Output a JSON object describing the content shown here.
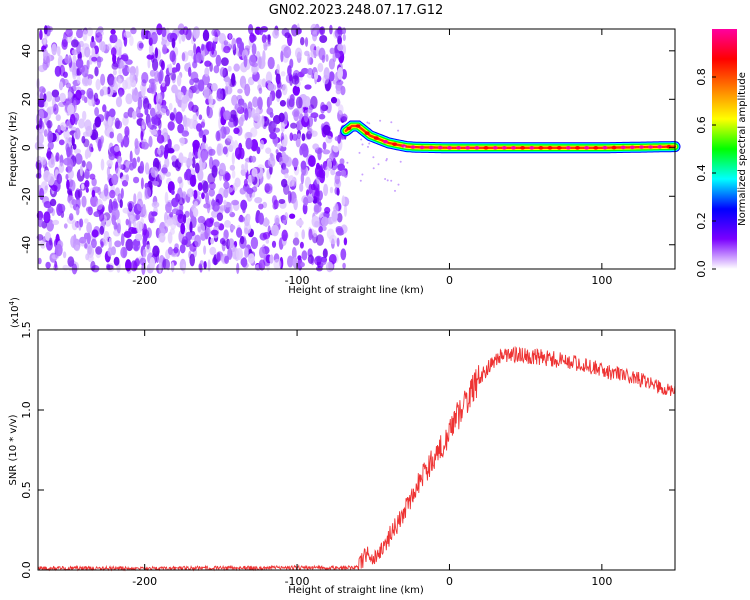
{
  "title": "GN02.2023.248.07.17.G12",
  "chart_data": [
    {
      "type": "heatmap",
      "xlabel": "Height of straight line (km)",
      "ylabel": "Frequency (Hz)",
      "xlim": [
        -270,
        148
      ],
      "ylim": [
        -50,
        49
      ],
      "x_ticks": [
        -200,
        -100,
        0,
        100
      ],
      "y_ticks": [
        -40,
        -20,
        0,
        20,
        40
      ],
      "noise_region_x": [
        -270,
        -68
      ],
      "ridge": {
        "x": [
          -68,
          -64,
          -60,
          -56,
          -52,
          -48,
          -44,
          -40,
          -36,
          -32,
          -28,
          -24,
          -20,
          -10,
          0,
          20,
          40,
          60,
          80,
          100,
          120,
          148
        ],
        "y": [
          7,
          9,
          9,
          7,
          5,
          4,
          3,
          2,
          1.5,
          1,
          0.5,
          0.3,
          0.2,
          0.1,
          0,
          0,
          0,
          0,
          0,
          0,
          0.2,
          0.5
        ]
      },
      "colorbar": {
        "label": "Normalized spectral amplitude",
        "ticks": [
          "0.0",
          "0.2",
          "0.4",
          "0.6",
          "0.8"
        ],
        "range": [
          0,
          1
        ],
        "colors": [
          "#ffffff",
          "#7a00ff",
          "#0000ff",
          "#00ffff",
          "#00ff00",
          "#ffff00",
          "#ff8000",
          "#ff0000",
          "#ff00a0"
        ]
      }
    },
    {
      "type": "line",
      "xlabel": "Height of straight line (km)",
      "ylabel": "SNR (10 * v/v)",
      "scale_label_prefix": "(x10",
      "scale_label_exp": "4",
      "scale_label_suffix": ")",
      "xlim": [
        -270,
        148
      ],
      "ylim": [
        0,
        1.5
      ],
      "x_ticks": [
        -200,
        -100,
        0,
        100
      ],
      "y_ticks": [
        "0.0",
        "0.5",
        "1.0",
        "1.5"
      ],
      "color": "#ee3333",
      "series": [
        {
          "x": [
            -270,
            -200,
            -100,
            -60,
            -55,
            -50,
            -40,
            -30,
            -20,
            -10,
            0,
            10,
            20,
            30,
            40,
            60,
            80,
            100,
            120,
            148
          ],
          "y": [
            0.01,
            0.01,
            0.015,
            0.015,
            0.1,
            0.05,
            0.2,
            0.35,
            0.55,
            0.7,
            0.85,
            1.05,
            1.2,
            1.32,
            1.35,
            1.33,
            1.3,
            1.25,
            1.2,
            1.12
          ]
        }
      ]
    }
  ]
}
